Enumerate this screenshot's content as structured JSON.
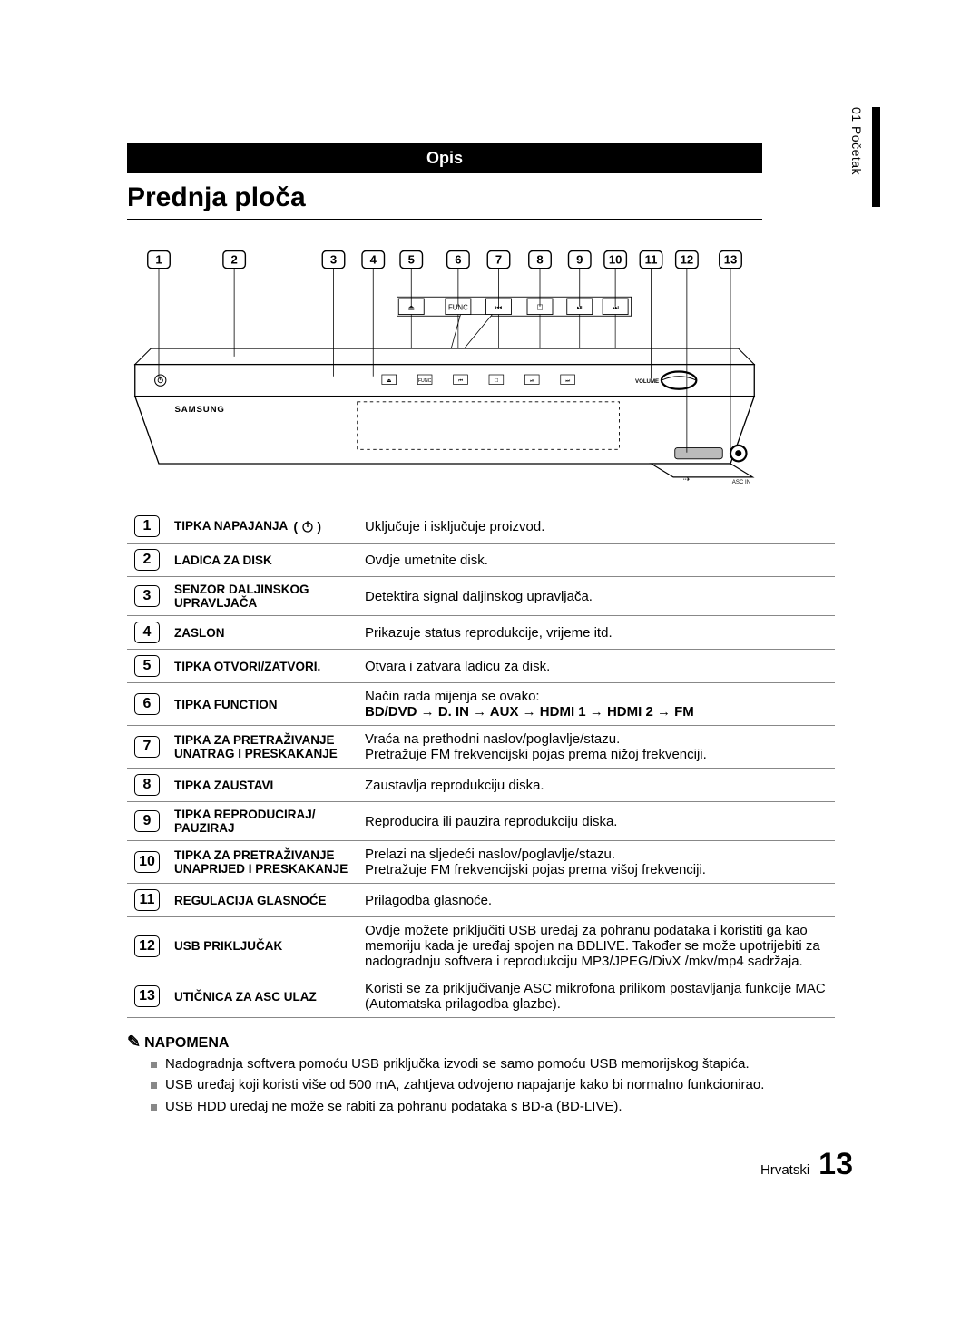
{
  "sideTab": "01  Početak",
  "opis": "Opis",
  "sectionTitle": "Prednja ploča",
  "callouts": [
    "1",
    "2",
    "3",
    "4",
    "5",
    "6",
    "7",
    "8",
    "9",
    "10",
    "11",
    "12",
    "13"
  ],
  "calloutX": [
    40,
    135,
    260,
    310,
    358,
    417,
    468,
    520,
    570,
    615,
    660,
    705,
    760
  ],
  "deviceBrand": "SAMSUNG",
  "btnIconLabels": [
    "⏏",
    "FUNC",
    "⏮",
    "☐",
    "⏯",
    "⏭"
  ],
  "volumeLabel": "VOLUME",
  "ascLabel": "ASC IN",
  "rows": [
    {
      "n": "1",
      "name": "TIPKA NAPAJANJA",
      "icon": "power",
      "desc": "Uključuje i isključuje proizvod."
    },
    {
      "n": "2",
      "name": "LADICA ZA DISK",
      "desc": "Ovdje umetnite disk."
    },
    {
      "n": "3",
      "name": "SENZOR DALJINSKOG UPRAVLJAČA",
      "desc": "Detektira signal daljinskog upravljača."
    },
    {
      "n": "4",
      "name": "ZASLON",
      "desc": "Prikazuje status reprodukcije, vrijeme itd."
    },
    {
      "n": "5",
      "name": "TIPKA OTVORI/ZATVORI.",
      "desc": "Otvara i zatvara ladicu za disk."
    },
    {
      "n": "6",
      "name": "TIPKA FUNCTION",
      "desc": "Način rada mijenja se ovako:<br><b>BD/DVD → D. IN → AUX → HDMI 1 → HDMI 2 → FM</b>"
    },
    {
      "n": "7",
      "name": "TIPKA ZA PRETRAŽIVANJE UNATRAG I PRESKAKANJE",
      "desc": "Vraća na prethodni naslov/poglavlje/stazu.<br>Pretražuje FM frekvencijski pojas prema nižoj frekvenciji."
    },
    {
      "n": "8",
      "name": "TIPKA ZAUSTAVI",
      "desc": "Zaustavlja reprodukciju diska."
    },
    {
      "n": "9",
      "name": "TIPKA REPRODUCIRAJ/ PAUZIRAJ",
      "desc": "Reproducira ili pauzira reprodukciju diska."
    },
    {
      "n": "10",
      "name": "TIPKA ZA PRETRAŽIVANJE UNAPRIJED I PRESKAKANJE",
      "desc": "Prelazi na sljedeći naslov/poglavlje/stazu.<br>Pretražuje FM frekvencijski pojas prema višoj frekvenciji."
    },
    {
      "n": "11",
      "name": "REGULACIJA GLASNOĆE",
      "desc": "Prilagodba glasnoće."
    },
    {
      "n": "12",
      "name": "USB PRIKLJUČAK",
      "desc": "Ovdje možete priključiti USB uređaj za pohranu podataka i koristiti ga kao memoriju kada je uređaj spojen na BDLIVE. Također se može upotrijebiti za nadogradnju softvera i reprodukciju MP3/JPEG/DivX /mkv/mp4 sadržaja."
    },
    {
      "n": "13",
      "name": "UTIČNICA ZA ASC ULAZ",
      "desc": "Koristi se za priključivanje ASC mikrofona prilikom postavljanja funkcije MAC (Automatska prilagodba glazbe)."
    }
  ],
  "noteTitle": "NAPOMENA",
  "notes": [
    "Nadogradnja softvera pomoću USB priključka izvodi se samo pomoću USB memorijskog štapića.",
    "USB uređaj koji koristi više od 500 mA, zahtjeva odvojeno napajanje kako bi normalno funkcionirao.",
    "USB HDD uređaj ne može se rabiti za pohranu podataka s BD-a (BD-LIVE)."
  ],
  "footerLang": "Hrvatski",
  "footerPage": "13",
  "colors": {
    "band": "#000000",
    "text": "#000000",
    "grid": "#888888"
  }
}
